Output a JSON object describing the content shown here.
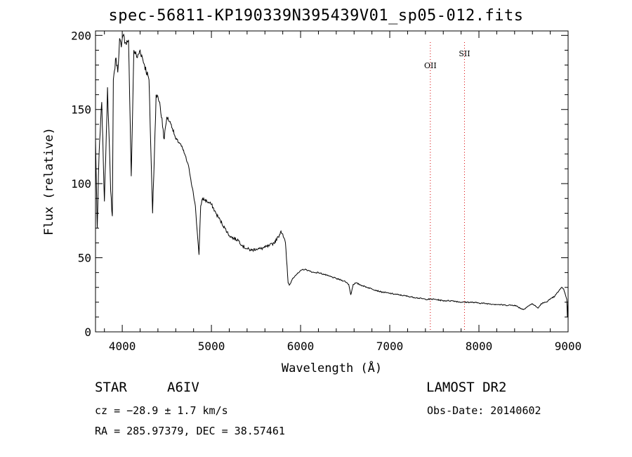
{
  "chart_data": {
    "type": "line",
    "title": "spec-56811-KP190339N395439V01_sp05-012.fits",
    "xlabel": "Wavelength (Å)",
    "ylabel": "Flux (relative)",
    "xlim": [
      3700,
      9000
    ],
    "ylim": [
      0,
      203
    ],
    "xticks": [
      4000,
      5000,
      6000,
      7000,
      8000,
      9000
    ],
    "yticks": [
      0,
      50,
      100,
      150,
      200
    ],
    "grid": false,
    "legend": "none",
    "series": [
      {
        "x": [
          3700,
          3720,
          3740,
          3770,
          3800,
          3835,
          3870,
          3889,
          3900,
          3930,
          3950,
          3970,
          3990,
          4010,
          4040,
          4070,
          4101,
          4130,
          4170,
          4200,
          4250,
          4300,
          4340,
          4380,
          4420,
          4471,
          4500,
          4550,
          4600,
          4650,
          4700,
          4750,
          4800,
          4820,
          4840,
          4861,
          4880,
          4900,
          4950,
          5000,
          5050,
          5100,
          5150,
          5200,
          5250,
          5300,
          5350,
          5400,
          5450,
          5500,
          5550,
          5600,
          5650,
          5700,
          5750,
          5780,
          5800,
          5830,
          5860,
          5880,
          5890,
          5910,
          5940,
          5980,
          6020,
          6060,
          6100,
          6150,
          6200,
          6300,
          6400,
          6500,
          6540,
          6563,
          6590,
          6620,
          6700,
          6800,
          6900,
          7000,
          7100,
          7200,
          7300,
          7400,
          7500,
          7600,
          7700,
          7800,
          7900,
          8000,
          8100,
          8200,
          8300,
          8400,
          8498,
          8542,
          8600,
          8662,
          8700,
          8750,
          8800,
          8850,
          8900,
          8930,
          8950,
          8970,
          8985,
          8992,
          9000
        ],
        "y": [
          130,
          70,
          120,
          155,
          88,
          165,
          95,
          78,
          170,
          185,
          175,
          198,
          192,
          200,
          195,
          197,
          105,
          190,
          185,
          190,
          180,
          170,
          80,
          160,
          155,
          130,
          145,
          140,
          130,
          127,
          120,
          110,
          92,
          85,
          68,
          52,
          85,
          90,
          88,
          86,
          80,
          75,
          70,
          65,
          63,
          62,
          58,
          56,
          55,
          56,
          56,
          57,
          58,
          60,
          64,
          68,
          66,
          60,
          33,
          32,
          33,
          36,
          38,
          40,
          42,
          42,
          41,
          40,
          40,
          38,
          36,
          34,
          32,
          25,
          32,
          33,
          31,
          29,
          27,
          26,
          25,
          24,
          23,
          22,
          22,
          21,
          21,
          20,
          20,
          19.5,
          19,
          18.5,
          18,
          18,
          15,
          17,
          19,
          16,
          19,
          20,
          22,
          24,
          28,
          30,
          29,
          25,
          22,
          10,
          22
        ]
      }
    ],
    "reference_lines": [
      {
        "label": "OII",
        "x": 7455
      },
      {
        "label": "SII",
        "x": 7838
      }
    ],
    "reference_color": "#d80000"
  },
  "info": {
    "object_class": "STAR",
    "subclass": "A6IV",
    "survey": "LAMOST DR2",
    "cz": "cz = −28.9 ± 1.7 km/s",
    "obs_date": "Obs-Date: 20140602",
    "coords": "RA = 285.97379, DEC =  38.57461"
  }
}
